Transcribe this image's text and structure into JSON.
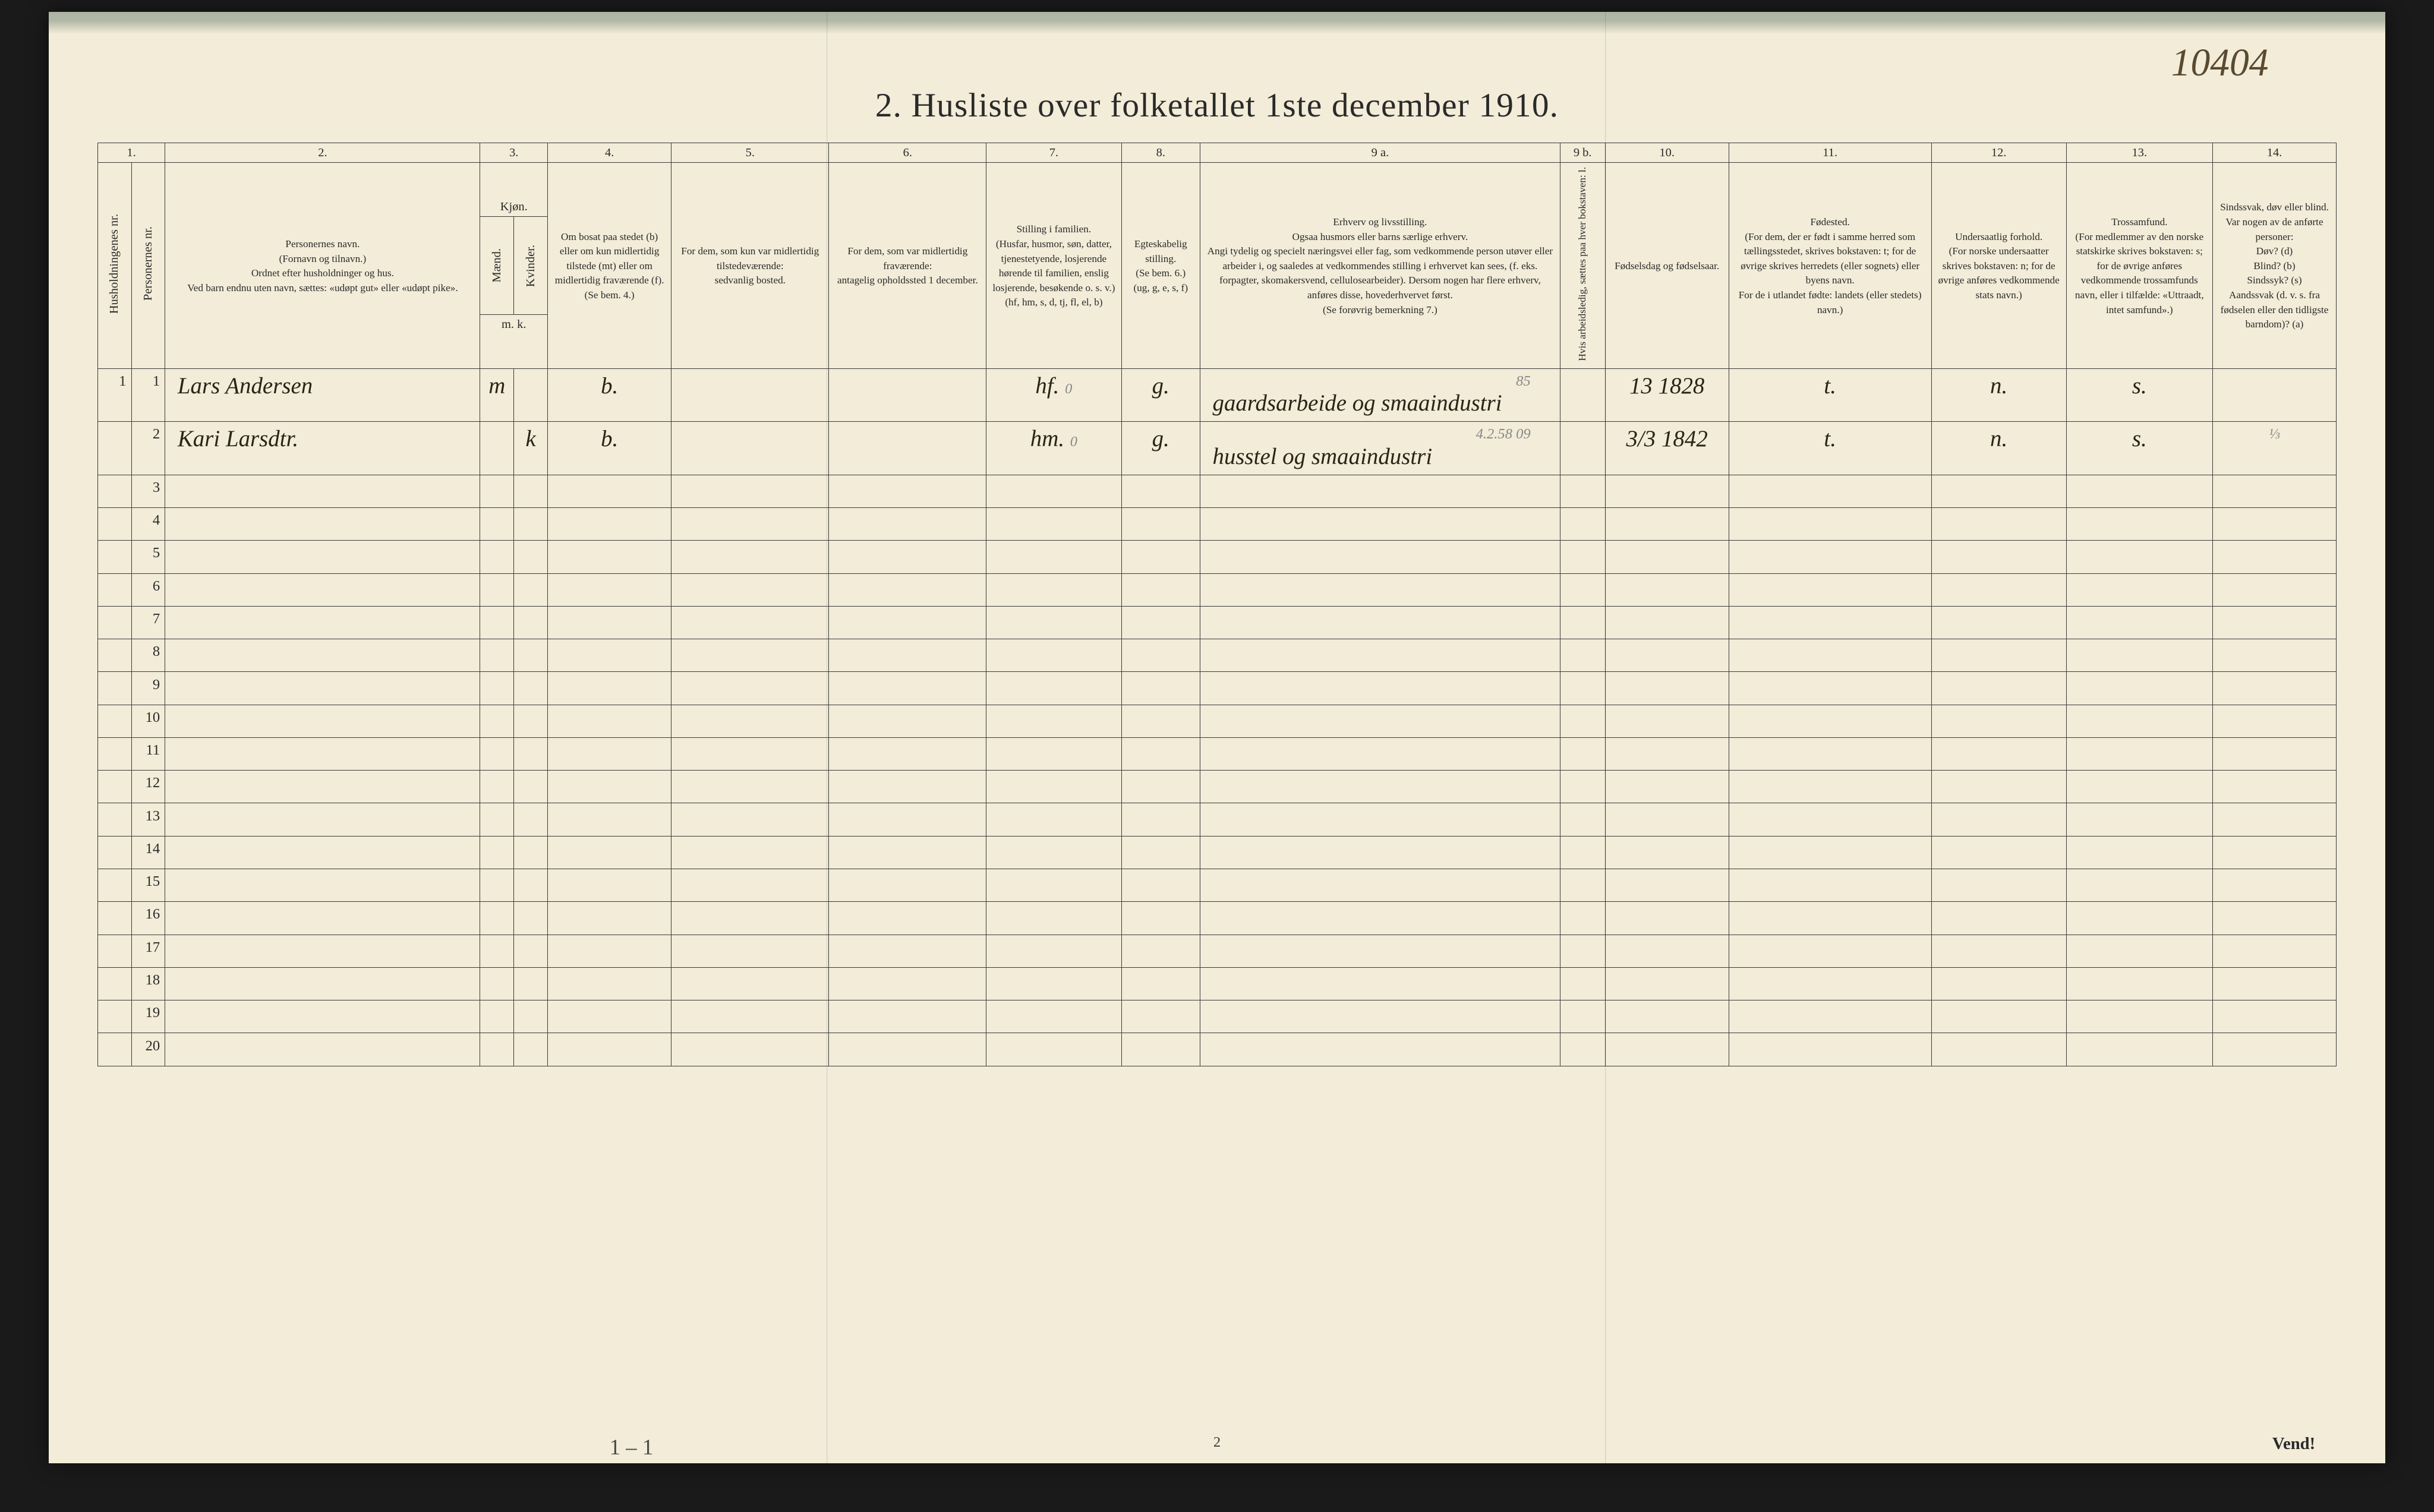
{
  "document_id_handwritten": "10404",
  "title": "2.  Husliste over folketallet 1ste december 1910.",
  "columns": {
    "numbers": [
      "1.",
      "2.",
      "3.",
      "4.",
      "5.",
      "6.",
      "7.",
      "8.",
      "9 a.",
      "9 b.",
      "10.",
      "11.",
      "12.",
      "13.",
      "14."
    ],
    "col1a": "Husholdningenes nr.",
    "col1b": "Personernes nr.",
    "col2": "Personernes navn.\n(Fornavn og tilnavn.)\nOrdnet efter husholdninger og hus.\nVed barn endnu uten navn, sættes: «udøpt gut» eller «udøpt pike».",
    "col3": "Kjøn.",
    "col3a": "Mænd.",
    "col3b": "Kvinder.",
    "col3_mk": "m.  k.",
    "col4": "Om bosat paa stedet (b) eller om kun midlertidig tilstede (mt) eller om midlertidig fraværende (f).\n(Se bem. 4.)",
    "col5": "For dem, som kun var midlertidig tilstedeværende:\nsedvanlig bosted.",
    "col6": "For dem, som var midlertidig fraværende:\nantagelig opholdssted 1 december.",
    "col7": "Stilling i familien.\n(Husfar, husmor, søn, datter, tjenestetyende, losjerende hørende til familien, enslig losjerende, besøkende o. s. v.)\n(hf, hm, s, d, tj, fl, el, b)",
    "col8": "Egteskabelig stilling.\n(Se bem. 6.)\n(ug, g, e, s, f)",
    "col9a": "Erhverv og livsstilling.\nOgsaa husmors eller barns særlige erhverv.\nAngi tydelig og specielt næringsvei eller fag, som vedkommende person utøver eller arbeider i, og saaledes at vedkommendes stilling i erhvervet kan sees, (f. eks. forpagter, skomakersvend, cellulosearbeider). Dersom nogen har flere erhverv, anføres disse, hovederhvervet først.\n(Se forøvrig bemerkning 7.)",
    "col9b": "Hvis arbeidsledig, sættes paa hver bokstaven: l.",
    "col10": "Fødselsdag og fødselsaar.",
    "col11": "Fødested.\n(For dem, der er født i samme herred som tællingsstedet, skrives bokstaven: t; for de øvrige skrives herredets (eller sognets) eller byens navn.\nFor de i utlandet fødte: landets (eller stedets) navn.)",
    "col12": "Undersaatlig forhold.\n(For norske undersaatter skrives bokstaven: n; for de øvrige anføres vedkommende stats navn.)",
    "col13": "Trossamfund.\n(For medlemmer av den norske statskirke skrives bokstaven: s; for de øvrige anføres vedkommende trossamfunds navn, eller i tilfælde: «Uttraadt, intet samfund».)",
    "col14": "Sindssvak, døv eller blind.\nVar nogen av de anførte personer:\nDøv?      (d)\nBlind?    (b)\nSindssyk? (s)\nAandssvak (d. v. s. fra fødselen eller den tidligste barndom)? (a)"
  },
  "rows": [
    {
      "num": "1",
      "name": "Lars Andersen",
      "sex_m": "m",
      "sex_k": "",
      "residence": "b.",
      "col5": "",
      "col6": "",
      "family": "hf.",
      "marital_pencil": "0",
      "marital": "g.",
      "occupation_pencil": "85",
      "occupation": "gaardsarbeide og smaaindustri",
      "col9b": "",
      "birth": "13 1828",
      "birthplace": "t.",
      "nationality": "n.",
      "faith": "s.",
      "col14": ""
    },
    {
      "num": "2",
      "name": "Kari Larsdtr.",
      "sex_m": "",
      "sex_k": "k",
      "residence": "b.",
      "col5": "",
      "col6": "",
      "family": "hm.",
      "marital_pencil": "0",
      "marital": "g.",
      "occupation_pencil": "4.2.58   09",
      "occupation": "husstel og smaaindustri",
      "col9b": "",
      "birth": "3/3 1842",
      "birthplace": "t.",
      "nationality": "n.",
      "faith": "s.",
      "col14": ""
    }
  ],
  "empty_row_numbers": [
    "3",
    "4",
    "5",
    "6",
    "7",
    "8",
    "9",
    "10",
    "11",
    "12",
    "13",
    "14",
    "15",
    "16",
    "17",
    "18",
    "19",
    "20"
  ],
  "tally_below": "1 – 1",
  "page_footer_center": "2",
  "page_footer_right": "Vend!",
  "row2_col14_pencil": "⅓",
  "colors": {
    "paper": "#f2ecd8",
    "ink": "#2a2a2a",
    "handwriting": "#2a2418",
    "pencil": "#888888",
    "border": "#3a3a3a",
    "page_bg": "#1a1a1a"
  },
  "table_style": {
    "col_widths_pct": [
      1.5,
      1.5,
      14,
      1.5,
      1.5,
      5.5,
      7,
      7,
      6,
      3.5,
      16,
      2,
      5.5,
      9,
      6,
      6.5,
      5.5
    ],
    "header_fontsize_vw": 0.5,
    "body_fontsize_vw": 0.55,
    "handwriting_fontsize_vw": 0.95,
    "row_height_vw": 1.35,
    "header_height_vw": 6.5,
    "title_fontsize_vw": 1.4
  }
}
